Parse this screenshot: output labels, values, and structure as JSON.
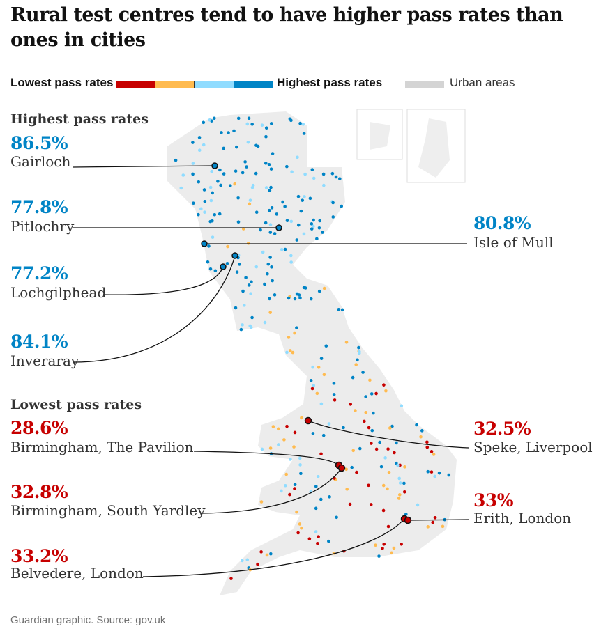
{
  "title": "Rural test centres tend to have higher pass rates than ones in cities",
  "legend": {
    "low": "Lowest pass rates",
    "high": "Highest pass rates",
    "urban": "Urban areas",
    "colors": [
      "#c70000",
      "#ffbb50",
      "#90dcff",
      "#0084c6"
    ],
    "urban_color": "#d4d4d4"
  },
  "highest": {
    "heading": "Highest pass rates",
    "items": [
      {
        "pct": "86.5%",
        "name": "Gairloch"
      },
      {
        "pct": "77.8%",
        "name": "Pitlochry"
      },
      {
        "pct": "80.8%",
        "name": "Isle of Mull"
      },
      {
        "pct": "77.2%",
        "name": "Lochgilphead"
      },
      {
        "pct": "84.1%",
        "name": "Inveraray"
      }
    ]
  },
  "lowest": {
    "heading": "Lowest pass rates",
    "items": [
      {
        "pct": "28.6%",
        "name": "Birmingham, The Pavilion"
      },
      {
        "pct": "32.5%",
        "name": "Speke, Liverpool"
      },
      {
        "pct": "32.8%",
        "name": "Birmingham, South Yardley"
      },
      {
        "pct": "33%",
        "name": "Erith, London"
      },
      {
        "pct": "33.2%",
        "name": "Belvedere, London"
      }
    ]
  },
  "source": "Guardian graphic. Source: gov.uk"
}
